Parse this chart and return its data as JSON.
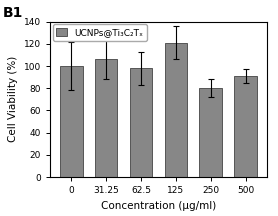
{
  "categories": [
    "0",
    "31.25",
    "62.5",
    "125",
    "250",
    "500"
  ],
  "values": [
    100,
    106,
    98,
    121,
    80,
    91
  ],
  "errors": [
    22,
    18,
    15,
    15,
    8,
    6
  ],
  "bar_color": "#878787",
  "bar_edgecolor": "#555555",
  "xlabel": "Concentration (μg/ml)",
  "ylabel": "Cell Viability (%)",
  "ylim": [
    0,
    140
  ],
  "yticks": [
    0,
    20,
    40,
    60,
    80,
    100,
    120,
    140
  ],
  "legend_label": "UCNPs@Ti₃C₂Tₓ",
  "panel_label": "B1",
  "background_color": "#ffffff",
  "bar_width": 0.65
}
